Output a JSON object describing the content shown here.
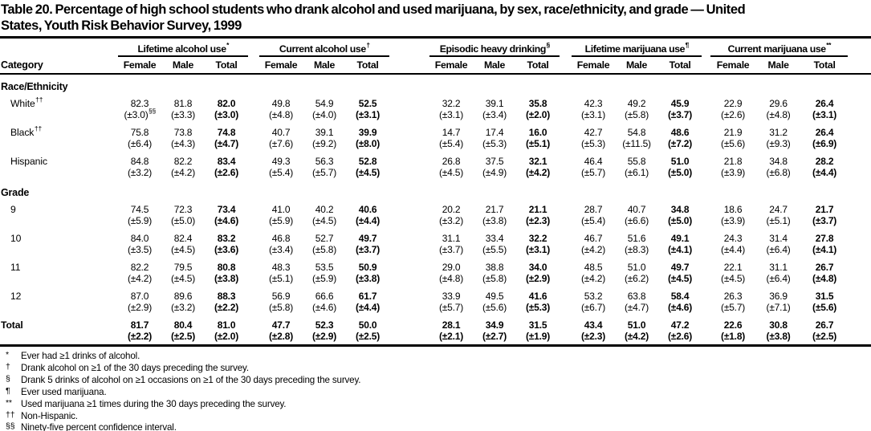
{
  "title_lines": [
    "Table 20. Percentage of high school students who drank alcohol and used marijuana, by sex, race/ethnicity, and grade — United",
    "States, Youth Risk Behavior Survey, 1999"
  ],
  "colors": {
    "text": "#000000",
    "background": "#ffffff",
    "rule": "#000000"
  },
  "table": {
    "category_header": "Category",
    "groups": [
      {
        "label": "Lifetime alcohol use",
        "marker": "*"
      },
      {
        "label": "Current alcohol use",
        "marker": "†"
      },
      {
        "label": "Episodic heavy drinking",
        "marker": "§"
      },
      {
        "label": "Lifetime marijuana use",
        "marker": "¶"
      },
      {
        "label": "Current marijuana use",
        "marker": "**"
      }
    ],
    "subheaders": [
      "Female",
      "Male",
      "Total"
    ],
    "sections": [
      {
        "heading": "Race/Ethnicity",
        "rows": [
          {
            "label": "White",
            "marker": "††",
            "values": [
              "82.3",
              "81.8",
              "82.0",
              "49.8",
              "54.9",
              "52.5",
              "32.2",
              "39.1",
              "35.8",
              "42.3",
              "49.2",
              "45.9",
              "22.9",
              "29.6",
              "26.4"
            ],
            "cis": [
              "(±3.0)",
              "(±3.3)",
              "(±3.0)",
              "(±4.8)",
              "(±4.0)",
              "(±3.1)",
              "(±3.1)",
              "(±3.4)",
              "(±2.0)",
              "(±3.1)",
              "(±5.8)",
              "(±3.7)",
              "(±2.6)",
              "(±4.8)",
              "(±3.1)"
            ],
            "ci_note": {
              "index": 0,
              "marker": "§§"
            }
          },
          {
            "label": "Black",
            "marker": "††",
            "values": [
              "75.8",
              "73.8",
              "74.8",
              "40.7",
              "39.1",
              "39.9",
              "14.7",
              "17.4",
              "16.0",
              "42.7",
              "54.8",
              "48.6",
              "21.9",
              "31.2",
              "26.4"
            ],
            "cis": [
              "(±6.4)",
              "(±4.3)",
              "(±4.7)",
              "(±7.6)",
              "(±9.2)",
              "(±8.0)",
              "(±5.4)",
              "(±5.3)",
              "(±5.1)",
              "(±5.3)",
              "(±11.5)",
              "(±7.2)",
              "(±5.6)",
              "(±9.3)",
              "(±6.9)"
            ]
          },
          {
            "label": "Hispanic",
            "marker": "",
            "values": [
              "84.8",
              "82.2",
              "83.4",
              "49.3",
              "56.3",
              "52.8",
              "26.8",
              "37.5",
              "32.1",
              "46.4",
              "55.8",
              "51.0",
              "21.8",
              "34.8",
              "28.2"
            ],
            "cis": [
              "(±3.2)",
              "(±4.2)",
              "(±2.6)",
              "(±5.4)",
              "(±5.7)",
              "(±4.5)",
              "(±4.5)",
              "(±4.9)",
              "(±4.2)",
              "(±5.7)",
              "(±6.1)",
              "(±5.0)",
              "(±3.9)",
              "(±6.8)",
              "(±4.4)"
            ]
          }
        ]
      },
      {
        "heading": "Grade",
        "rows": [
          {
            "label": "9",
            "marker": "",
            "values": [
              "74.5",
              "72.3",
              "73.4",
              "41.0",
              "40.2",
              "40.6",
              "20.2",
              "21.7",
              "21.1",
              "28.7",
              "40.7",
              "34.8",
              "18.6",
              "24.7",
              "21.7"
            ],
            "cis": [
              "(±5.9)",
              "(±5.0)",
              "(±4.6)",
              "(±5.9)",
              "(±4.5)",
              "(±4.4)",
              "(±3.2)",
              "(±3.8)",
              "(±2.3)",
              "(±5.4)",
              "(±6.6)",
              "(±5.0)",
              "(±3.9)",
              "(±5.1)",
              "(±3.7)"
            ]
          },
          {
            "label": "10",
            "marker": "",
            "values": [
              "84.0",
              "82.4",
              "83.2",
              "46.8",
              "52.7",
              "49.7",
              "31.1",
              "33.4",
              "32.2",
              "46.7",
              "51.6",
              "49.1",
              "24.3",
              "31.4",
              "27.8"
            ],
            "cis": [
              "(±3.5)",
              "(±4.5)",
              "(±3.6)",
              "(±3.4)",
              "(±5.8)",
              "(±3.7)",
              "(±3.7)",
              "(±5.5)",
              "(±3.1)",
              "(±4.2)",
              "(±8.3)",
              "(±4.1)",
              "(±4.4)",
              "(±6.4)",
              "(±4.1)"
            ]
          },
          {
            "label": "11",
            "marker": "",
            "values": [
              "82.2",
              "79.5",
              "80.8",
              "48.3",
              "53.5",
              "50.9",
              "29.0",
              "38.8",
              "34.0",
              "48.5",
              "51.0",
              "49.7",
              "22.1",
              "31.1",
              "26.7"
            ],
            "cis": [
              "(±4.2)",
              "(±4.5)",
              "(±3.8)",
              "(±5.1)",
              "(±5.9)",
              "(±3.8)",
              "(±4.8)",
              "(±5.8)",
              "(±2.9)",
              "(±4.2)",
              "(±6.2)",
              "(±4.5)",
              "(±4.5)",
              "(±6.4)",
              "(±4.8)"
            ]
          },
          {
            "label": "12",
            "marker": "",
            "values": [
              "87.0",
              "89.6",
              "88.3",
              "56.9",
              "66.6",
              "61.7",
              "33.9",
              "49.5",
              "41.6",
              "53.2",
              "63.8",
              "58.4",
              "26.3",
              "36.9",
              "31.5"
            ],
            "cis": [
              "(±2.9)",
              "(±3.2)",
              "(±2.2)",
              "(±5.8)",
              "(±4.6)",
              "(±4.4)",
              "(±5.7)",
              "(±5.6)",
              "(±5.3)",
              "(±6.7)",
              "(±4.7)",
              "(±4.6)",
              "(±5.7)",
              "(±7.1)",
              "(±5.6)"
            ]
          }
        ]
      }
    ],
    "total_row": {
      "label": "Total",
      "marker": "",
      "values": [
        "81.7",
        "80.4",
        "81.0",
        "47.7",
        "52.3",
        "50.0",
        "28.1",
        "34.9",
        "31.5",
        "43.4",
        "51.0",
        "47.2",
        "22.6",
        "30.8",
        "26.7"
      ],
      "cis": [
        "(±2.2)",
        "(±2.5)",
        "(±2.0)",
        "(±2.8)",
        "(±2.9)",
        "(±2.5)",
        "(±2.1)",
        "(±2.7)",
        "(±1.9)",
        "(±2.3)",
        "(±4.2)",
        "(±2.6)",
        "(±1.8)",
        "(±3.8)",
        "(±2.5)"
      ]
    }
  },
  "footnotes": [
    {
      "marker": "*",
      "text": "Ever had ≥1 drinks of alcohol."
    },
    {
      "marker": "†",
      "text": "Drank alcohol on ≥1 of the 30 days preceding the survey."
    },
    {
      "marker": "§",
      "text": "Drank  5 drinks of alcohol on ≥1 occasions on ≥1 of the 30 days preceding the survey."
    },
    {
      "marker": "¶",
      "text": "Ever used marijuana."
    },
    {
      "marker": "**",
      "text": "Used marijuana ≥1 times during the 30 days preceding the survey."
    },
    {
      "marker": "††",
      "text": "Non-Hispanic."
    },
    {
      "marker": "§§",
      "text": "Ninety-five percent confidence interval."
    }
  ]
}
